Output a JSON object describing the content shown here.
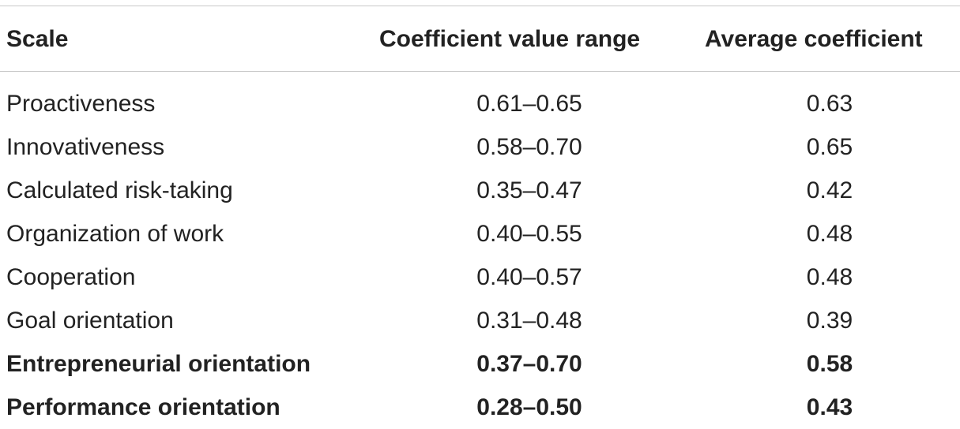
{
  "table": {
    "headers": {
      "scale": "Scale",
      "range": "Coefficient value range",
      "average": "Average coefficient"
    },
    "rows": [
      {
        "scale": "Proactiveness",
        "range": "0.61–0.65",
        "average": "0.63",
        "bold": false
      },
      {
        "scale": "Innovativeness",
        "range": "0.58–0.70",
        "average": "0.65",
        "bold": false
      },
      {
        "scale": "Calculated risk-taking",
        "range": "0.35–0.47",
        "average": "0.42",
        "bold": false
      },
      {
        "scale": "Organization of work",
        "range": "0.40–0.55",
        "average": "0.48",
        "bold": false
      },
      {
        "scale": "Cooperation",
        "range": "0.40–0.57",
        "average": "0.48",
        "bold": false
      },
      {
        "scale": "Goal orientation",
        "range": "0.31–0.48",
        "average": "0.39",
        "bold": false
      },
      {
        "scale": "Entrepreneurial orientation",
        "range": "0.37–0.70",
        "average": "0.58",
        "bold": true
      },
      {
        "scale": "Performance orientation",
        "range": "0.28–0.50",
        "average": "0.43",
        "bold": true
      }
    ]
  }
}
